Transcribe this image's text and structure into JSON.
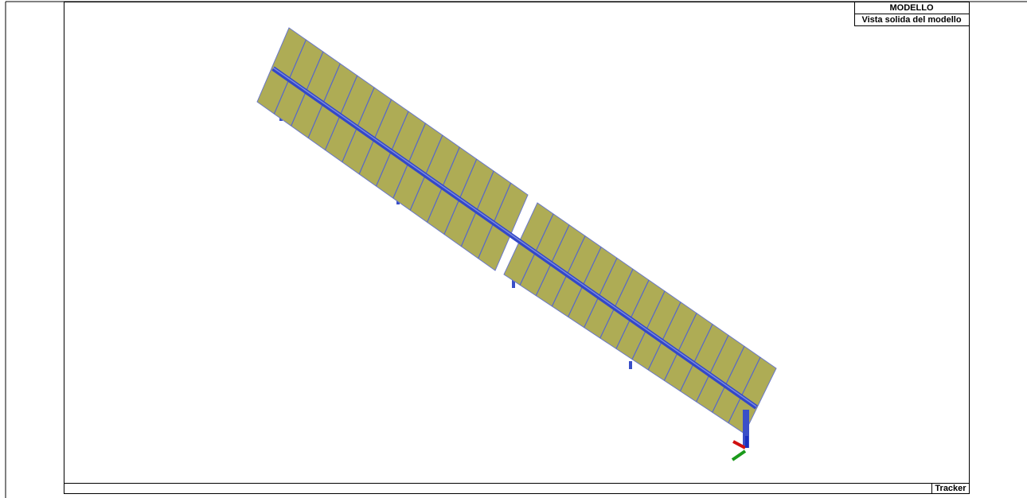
{
  "header": {
    "title": "MODELLO",
    "subtitle": "Vista solida del modello"
  },
  "footer": {
    "label": "Tracker"
  }
}
